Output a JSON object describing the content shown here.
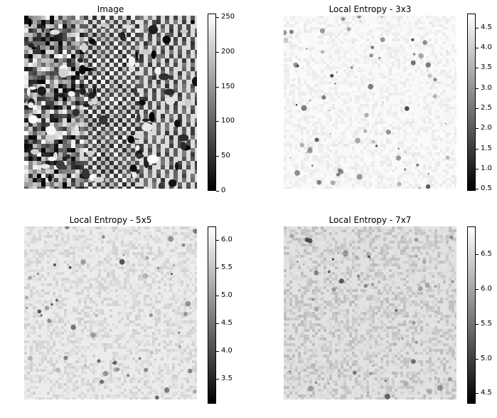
{
  "chart_data": [
    {
      "type": "heatmap",
      "title": "Image",
      "colormap": "gray",
      "colorbar": {
        "min": 0,
        "max": 255,
        "ticks": [
          0,
          50,
          100,
          150,
          200,
          250
        ]
      },
      "texture": "original",
      "base_gray": 128
    },
    {
      "type": "heatmap",
      "title": "Local Entropy - 3x3",
      "colormap": "gray",
      "colorbar": {
        "min": 0.45,
        "max": 4.85,
        "ticks": [
          0.5,
          1.0,
          1.5,
          2.0,
          2.5,
          3.0,
          3.5,
          4.0,
          4.5
        ]
      },
      "texture": "entropy",
      "base_gray": 250
    },
    {
      "type": "heatmap",
      "title": "Local Entropy - 5x5",
      "colormap": "gray",
      "colorbar": {
        "min": 3.05,
        "max": 6.25,
        "ticks": [
          3.5,
          4.0,
          4.5,
          5.0,
          5.5,
          6.0
        ]
      },
      "texture": "entropy",
      "base_gray": 236
    },
    {
      "type": "heatmap",
      "title": "Local Entropy - 7x7",
      "colormap": "gray",
      "colorbar": {
        "min": 4.35,
        "max": 6.9,
        "ticks": [
          4.5,
          5.0,
          5.5,
          6.0,
          6.5
        ]
      },
      "texture": "entropy",
      "base_gray": 226
    }
  ]
}
